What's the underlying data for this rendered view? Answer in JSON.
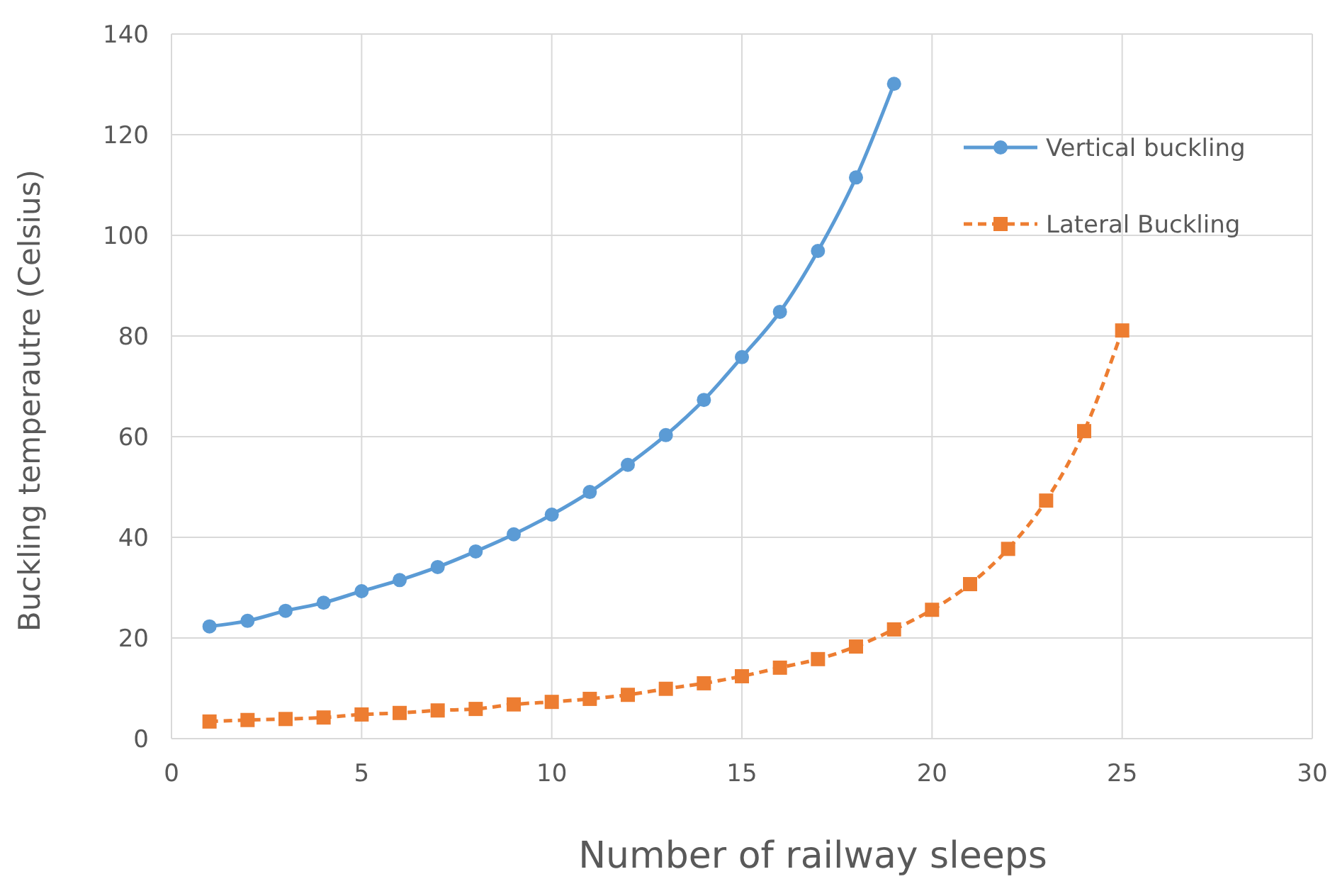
{
  "chart_data": {
    "type": "line",
    "xlabel": "Number of railway sleeps",
    "ylabel": "Buckling temperautre (Celsius)",
    "xlim": [
      0,
      30
    ],
    "xticks": [
      0,
      5,
      10,
      15,
      20,
      25,
      30
    ],
    "ylim": [
      0,
      140
    ],
    "yticks": [
      0,
      20,
      40,
      60,
      80,
      100,
      120,
      140
    ],
    "grid": true,
    "legend": "top right",
    "series": [
      {
        "name": "Vertical buckling",
        "color": "#5b9bd5",
        "marker": "circle",
        "line_style": "solid",
        "x": [
          1,
          2,
          3,
          4,
          5,
          6,
          7,
          8,
          9,
          10,
          11,
          12,
          13,
          14,
          15,
          16,
          17,
          18,
          19
        ],
        "values": [
          22.3,
          23.4,
          25.4,
          27,
          29.3,
          31.5,
          34.1,
          37.2,
          40.6,
          44.5,
          49,
          54.4,
          60.3,
          67.3,
          75.8,
          84.8,
          96.9,
          111.5,
          130.1
        ]
      },
      {
        "name": "Lateral Buckling",
        "color": "#ed7d31",
        "marker": "square",
        "line_style": "dashed",
        "x": [
          1,
          2,
          3,
          4,
          5,
          6,
          7,
          8,
          9,
          10,
          11,
          12,
          13,
          14,
          15,
          16,
          17,
          18,
          19,
          20,
          21,
          22,
          23,
          24,
          25
        ],
        "values": [
          3.4,
          3.7,
          3.9,
          4.2,
          4.8,
          5.1,
          5.6,
          5.9,
          6.8,
          7.3,
          7.9,
          8.7,
          9.9,
          11,
          12.4,
          14.1,
          15.8,
          18.3,
          21.7,
          25.6,
          30.7,
          37.7,
          47.3,
          61.1,
          81.1
        ]
      }
    ]
  }
}
